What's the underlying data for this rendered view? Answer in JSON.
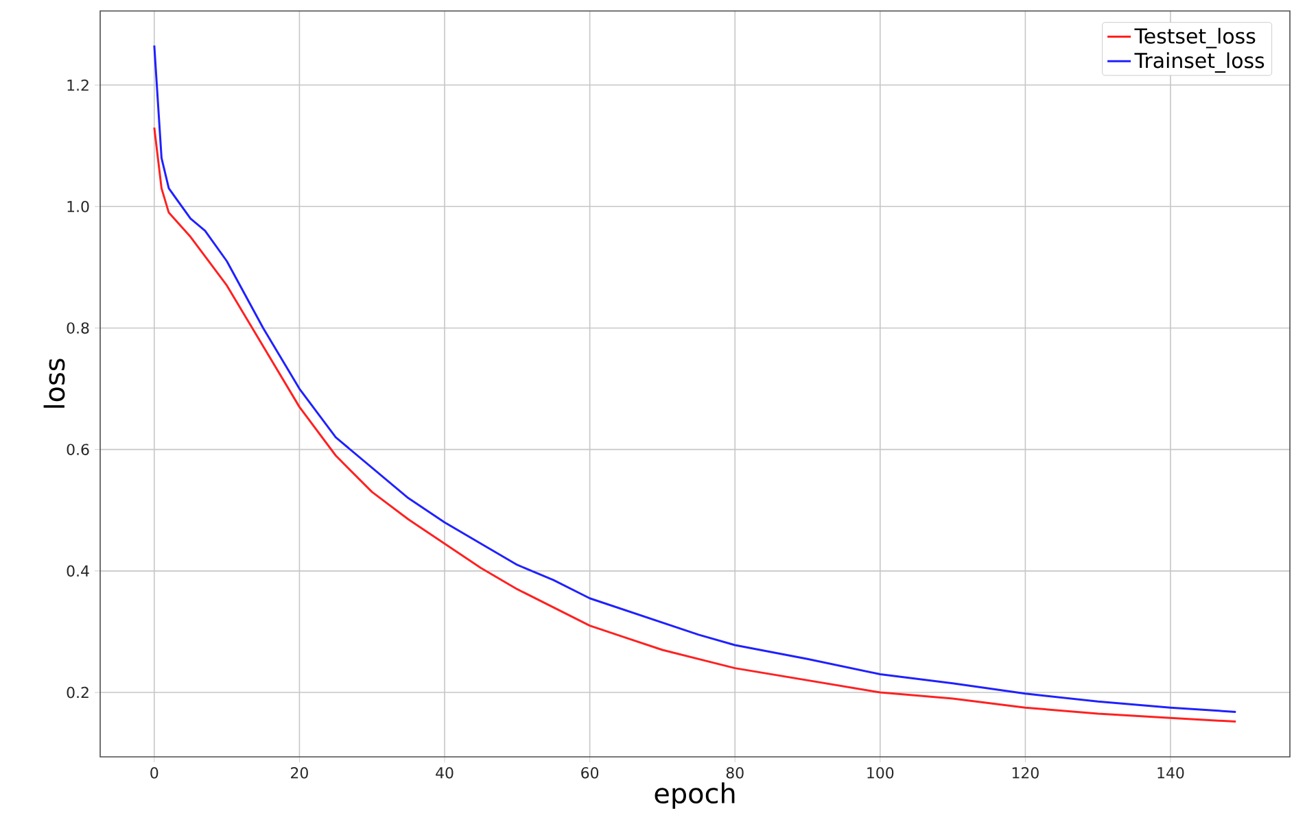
{
  "chart_data": {
    "type": "line",
    "xlabel": "epoch",
    "ylabel": "loss",
    "xlim": [
      -7.45,
      156.45
    ],
    "ylim": [
      0.094,
      1.322
    ],
    "xticks": [
      0,
      20,
      40,
      60,
      80,
      100,
      120,
      140
    ],
    "yticks": [
      {
        "value": 0.2,
        "label": "0.2"
      },
      {
        "value": 0.4,
        "label": "0.4"
      },
      {
        "value": 0.6,
        "label": "0.6"
      },
      {
        "value": 0.8,
        "label": "0.8"
      },
      {
        "value": 1.0,
        "label": "1.0"
      },
      {
        "value": 1.2,
        "label": "1.2"
      }
    ],
    "grid": true,
    "legend": "top right",
    "marker": "none",
    "line_style": "solid",
    "series": [
      {
        "name": "Testset_loss",
        "color": "#ff2020",
        "x": [
          0,
          1,
          2,
          5,
          10,
          15,
          20,
          25,
          30,
          35,
          40,
          45,
          50,
          55,
          60,
          65,
          70,
          75,
          80,
          90,
          100,
          110,
          120,
          130,
          140,
          149
        ],
        "values": [
          1.13,
          1.03,
          0.99,
          0.95,
          0.87,
          0.77,
          0.67,
          0.59,
          0.53,
          0.485,
          0.445,
          0.405,
          0.37,
          0.34,
          0.31,
          0.29,
          0.27,
          0.255,
          0.24,
          0.22,
          0.2,
          0.19,
          0.175,
          0.165,
          0.158,
          0.152
        ]
      },
      {
        "name": "Trainset_loss",
        "color": "#2020ff",
        "x": [
          0,
          1,
          2,
          5,
          7,
          10,
          15,
          20,
          25,
          30,
          35,
          40,
          45,
          50,
          55,
          60,
          65,
          70,
          75,
          80,
          90,
          100,
          110,
          120,
          130,
          140,
          149
        ],
        "values": [
          1.265,
          1.08,
          1.03,
          0.98,
          0.96,
          0.91,
          0.8,
          0.7,
          0.62,
          0.57,
          0.52,
          0.48,
          0.445,
          0.41,
          0.385,
          0.355,
          0.335,
          0.315,
          0.295,
          0.278,
          0.255,
          0.23,
          0.215,
          0.198,
          0.185,
          0.175,
          0.168
        ]
      }
    ]
  }
}
